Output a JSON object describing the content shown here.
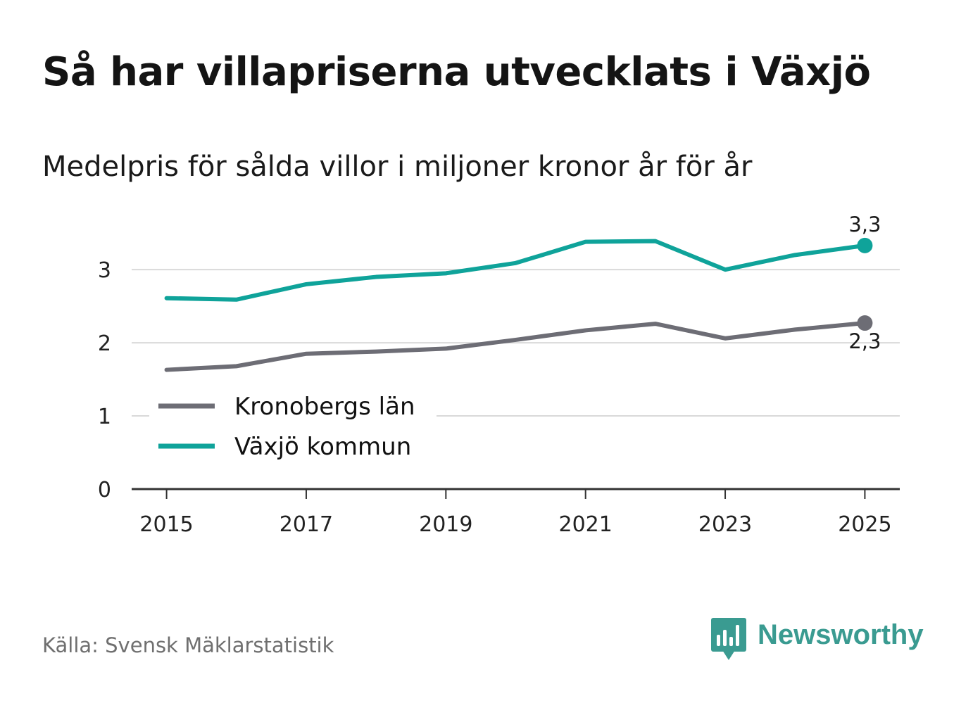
{
  "title": "Så har villapriserna utvecklats i Växjö",
  "subtitle": "Medelpris för sålda villor i miljoner kronor år för år",
  "source": "Källa: Svensk Mäklarstatistik",
  "brand": "Newsworthy",
  "colors": {
    "vaxjo": "#0fa39a",
    "kronoberg": "#6d6d75",
    "grid": "#d9d9d9",
    "axis": "#333333",
    "brand": "#3a9b91"
  },
  "chart_data": {
    "type": "line",
    "title": "Så har villapriserna utvecklats i Växjö",
    "subtitle": "Medelpris för sålda villor i miljoner kronor år för år",
    "xlabel": "",
    "ylabel": "",
    "x": [
      2015,
      2016,
      2017,
      2018,
      2019,
      2020,
      2021,
      2022,
      2023,
      2024,
      2025
    ],
    "xticks": [
      "2015",
      "2017",
      "2019",
      "2021",
      "2023",
      "2025"
    ],
    "yticks": [
      "0",
      "1",
      "2",
      "3"
    ],
    "ylim": [
      0,
      3.8
    ],
    "xlim": [
      2014.5,
      2025.5
    ],
    "grid": true,
    "legend_position": "lower-left",
    "series": [
      {
        "name": "Kronobergs län",
        "color": "#6d6d75",
        "values": [
          1.63,
          1.68,
          1.85,
          1.88,
          1.92,
          2.04,
          2.17,
          2.26,
          2.06,
          2.18,
          2.27
        ],
        "end_label": "2,3"
      },
      {
        "name": "Växjö kommun",
        "color": "#0fa39a",
        "values": [
          2.61,
          2.59,
          2.8,
          2.9,
          2.95,
          3.09,
          3.38,
          3.39,
          3.0,
          3.2,
          3.33
        ],
        "end_label": "3,3"
      }
    ]
  }
}
